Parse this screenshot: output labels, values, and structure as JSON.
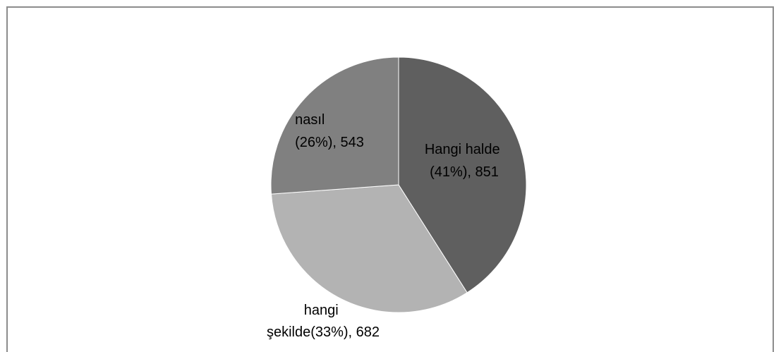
{
  "chart_data": {
    "type": "pie",
    "title": "",
    "slices": [
      {
        "category": "Hangi halde",
        "percent": "41%",
        "value": 851,
        "color": "#5f5f5f",
        "label_line1": "Hangi halde",
        "label_line2": "(41%), 851"
      },
      {
        "category": "hangi şekilde",
        "percent": "33%",
        "value": 682,
        "color": "#b3b3b3",
        "label_line1": "hangi",
        "label_line2": "şekilde(33%), 682"
      },
      {
        "category": "nasıl",
        "percent": "26%",
        "value": 543,
        "color": "#808080",
        "label_line1": "nasıl",
        "label_line2": "(26%), 543"
      }
    ],
    "legend": "none",
    "start_angle_deg": 0,
    "direction": "clockwise"
  }
}
